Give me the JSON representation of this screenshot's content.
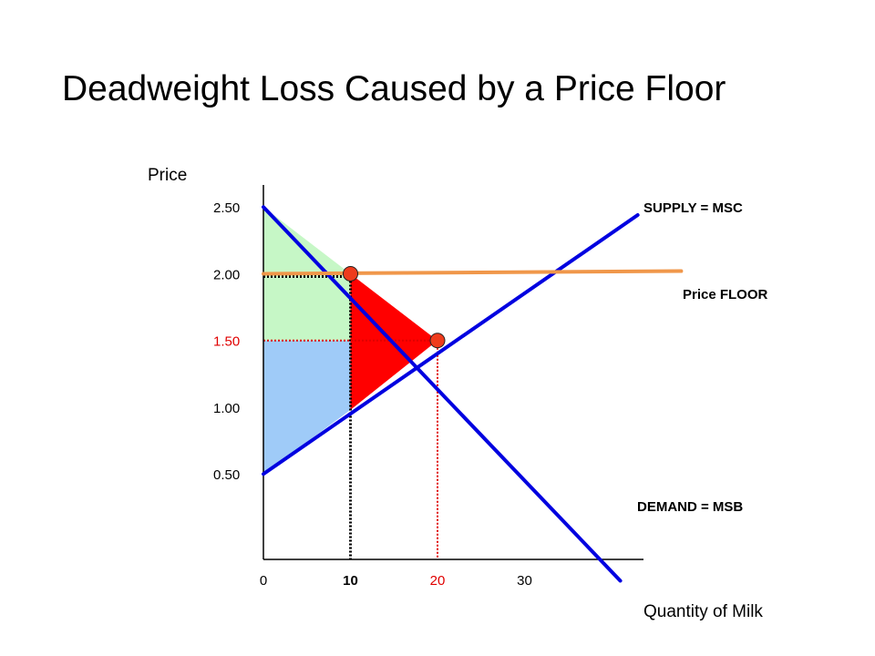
{
  "chart_data": {
    "type": "line",
    "title": "Deadweight Loss Caused by a Price Floor",
    "xlabel": "Quantity of Milk",
    "ylabel": "Price",
    "x_ticks": [
      {
        "value": 0,
        "label": "0",
        "color": "#000000",
        "bold": false
      },
      {
        "value": 10,
        "label": "10",
        "color": "#000000",
        "bold": true
      },
      {
        "value": 20,
        "label": "20",
        "color": "#e00000",
        "bold": false
      },
      {
        "value": 30,
        "label": "30",
        "color": "#000000",
        "bold": false
      }
    ],
    "y_ticks": [
      {
        "value": 2.5,
        "label": "2.50",
        "color": "#000000"
      },
      {
        "value": 2.0,
        "label": "2.00",
        "color": "#000000"
      },
      {
        "value": 1.5,
        "label": "1.50",
        "color": "#e00000"
      },
      {
        "value": 1.0,
        "label": "1.00",
        "color": "#000000"
      },
      {
        "value": 0.5,
        "label": "0.50",
        "color": "#000000"
      }
    ],
    "xlim": [
      0,
      44
    ],
    "ylim": [
      -0.14,
      2.82
    ],
    "series": [
      {
        "name": "SUPPLY = MSC",
        "color": "#0000e0",
        "points": [
          [
            0,
            0.5
          ],
          [
            43,
            2.44
          ]
        ]
      },
      {
        "name": "DEMAND = MSB",
        "color": "#0000e0",
        "points": [
          [
            0,
            2.5
          ],
          [
            41,
            -0.3
          ]
        ]
      },
      {
        "name": "Price FLOOR",
        "color": "#f0974a",
        "points": [
          [
            0,
            2.0
          ],
          [
            48,
            2.02
          ]
        ]
      }
    ],
    "equilibrium": {
      "x": 20,
      "y": 1.5
    },
    "floor_point": {
      "x": 10,
      "y": 2.0
    },
    "regions": [
      {
        "name": "consumer-surplus",
        "color": "#c6f7c6",
        "points": [
          [
            0,
            2.5
          ],
          [
            10,
            2.0
          ],
          [
            10,
            1.5
          ],
          [
            0,
            1.5
          ]
        ]
      },
      {
        "name": "producer-surplus",
        "color": "#9fcbf8",
        "points": [
          [
            0,
            1.5
          ],
          [
            10,
            1.5
          ],
          [
            10,
            0.98
          ],
          [
            0,
            0.5
          ]
        ]
      },
      {
        "name": "deadweight-loss",
        "color": "#ff0000",
        "points": [
          [
            10,
            2.0
          ],
          [
            20,
            1.5
          ],
          [
            10,
            0.98
          ]
        ]
      }
    ],
    "grid": false
  },
  "labels": {
    "title": "Deadweight Loss Caused by a Price Floor",
    "ylabel": "Price",
    "xlabel": "Quantity of Milk",
    "supply": "SUPPLY = MSC",
    "demand": "DEMAND = MSB",
    "floor": "Price FLOOR"
  }
}
